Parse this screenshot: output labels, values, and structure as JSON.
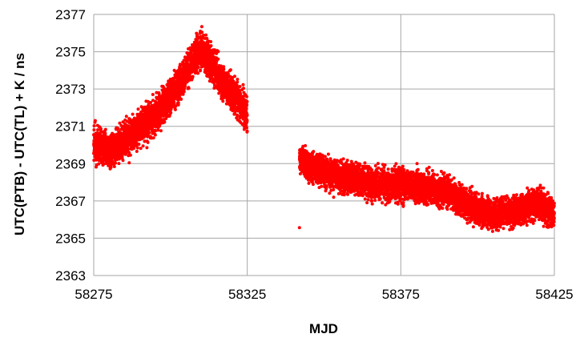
{
  "chart_data": {
    "type": "scatter",
    "title": "",
    "xlabel": "MJD",
    "ylabel": "UTC(PTB) - UTC(TL) + K / ns",
    "xlim": [
      58275,
      58425
    ],
    "ylim": [
      2363,
      2377
    ],
    "x_ticks": [
      58275,
      58325,
      58375,
      58425
    ],
    "y_ticks": [
      2363,
      2365,
      2367,
      2369,
      2371,
      2373,
      2375,
      2377
    ],
    "grid": true,
    "legend": "none",
    "marker_color": "#ff0000",
    "series": [
      {
        "segments": [
          {
            "x": [
              58275,
              58280,
              58285,
              58290,
              58295,
              58300,
              58305,
              58308,
              58310,
              58313,
              58317,
              58320,
              58323,
              58325
            ],
            "y": [
              2370.0,
              2369.7,
              2370.2,
              2370.9,
              2371.5,
              2372.6,
              2373.8,
              2374.8,
              2375.2,
              2374.5,
              2373.4,
              2372.8,
              2372.2,
              2371.6
            ],
            "spread": 0.65
          },
          {
            "x": [
              58342,
              58345,
              58350,
              58355,
              58360,
              58365,
              58370,
              58375,
              58380,
              58385,
              58390,
              58395,
              58400,
              58405,
              58410,
              58415,
              58420,
              58425
            ],
            "y": [
              2369.3,
              2368.9,
              2368.6,
              2368.3,
              2368.2,
              2367.9,
              2367.9,
              2367.9,
              2367.8,
              2367.6,
              2367.5,
              2367.0,
              2366.5,
              2366.3,
              2366.4,
              2366.6,
              2366.9,
              2366.2
            ],
            "spread": 0.55
          }
        ]
      }
    ]
  }
}
